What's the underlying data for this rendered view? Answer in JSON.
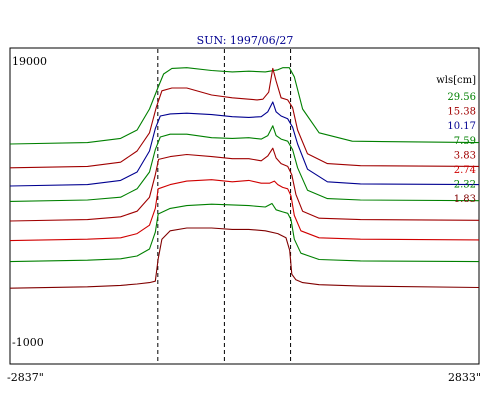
{
  "chart_data": {
    "type": "line",
    "title": "SUN: 1997/06/27",
    "xlabel": "",
    "ylabel": "",
    "x_tick_labels": {
      "left": "-2837\"",
      "right": "2833\""
    },
    "y_tick_labels": {
      "top": "19000",
      "bottom": "-1000"
    },
    "xlim": [
      -2837,
      2833
    ],
    "ylim": [
      -1000,
      19000
    ],
    "grid": false,
    "legend_title": "wls[cm]",
    "legend_position": "right",
    "vlines_x": [
      -1050,
      -245,
      555
    ],
    "series": [
      {
        "name": "29.56",
        "color": "#008000",
        "x": [
          -2837,
          -1900,
          -1500,
          -1300,
          -1150,
          -1050,
          -980,
          -880,
          -700,
          -400,
          -150,
          50,
          250,
          400,
          460,
          540,
          600,
          700,
          900,
          1300,
          2833
        ],
        "y": [
          13000,
          13100,
          13400,
          14000,
          15500,
          17000,
          18000,
          18400,
          18450,
          18250,
          18150,
          18200,
          18150,
          18300,
          18450,
          18450,
          17800,
          15500,
          13800,
          13200,
          13100
        ]
      },
      {
        "name": "15.38",
        "color": "#a00000",
        "x": [
          -2837,
          -1900,
          -1500,
          -1300,
          -1150,
          -1070,
          -1000,
          -880,
          -700,
          -400,
          -150,
          50,
          150,
          220,
          290,
          340,
          380,
          440,
          520,
          580,
          640,
          760,
          1000,
          1400,
          2833
        ],
        "y": [
          11300,
          11400,
          11700,
          12500,
          13800,
          15600,
          16800,
          17000,
          17000,
          16500,
          16300,
          16200,
          16150,
          16200,
          16700,
          18400,
          17500,
          16300,
          16150,
          15600,
          14000,
          12300,
          11600,
          11450,
          11400
        ]
      },
      {
        "name": "10.17",
        "color": "#000090",
        "x": [
          -2837,
          -1900,
          -1500,
          -1300,
          -1150,
          -1080,
          -1020,
          -900,
          -700,
          -400,
          -150,
          50,
          200,
          280,
          340,
          380,
          440,
          520,
          580,
          640,
          760,
          1000,
          1400,
          2833
        ],
        "y": [
          10000,
          10100,
          10400,
          11000,
          12500,
          14100,
          15000,
          15150,
          15200,
          15100,
          14950,
          14900,
          14950,
          15300,
          16000,
          15300,
          15000,
          14800,
          14200,
          13000,
          11200,
          10300,
          10150,
          10100
        ]
      },
      {
        "name": "7.59",
        "color": "#008000",
        "x": [
          -2837,
          -1900,
          -1500,
          -1300,
          -1150,
          -1080,
          -1020,
          -900,
          -700,
          -400,
          -150,
          50,
          200,
          280,
          340,
          380,
          440,
          520,
          580,
          640,
          760,
          1000,
          1400,
          2833
        ],
        "y": [
          8900,
          9000,
          9200,
          9800,
          11000,
          12600,
          13500,
          13700,
          13700,
          13450,
          13400,
          13450,
          13350,
          13600,
          14300,
          13600,
          13350,
          13200,
          12600,
          11300,
          9700,
          9100,
          9000,
          8950
        ]
      },
      {
        "name": "3.83",
        "color": "#a00000",
        "x": [
          -2837,
          -1900,
          -1500,
          -1300,
          -1150,
          -1080,
          -1040,
          -900,
          -700,
          -400,
          -150,
          50,
          200,
          280,
          340,
          380,
          440,
          520,
          570,
          620,
          700,
          900,
          1400,
          2833
        ],
        "y": [
          7500,
          7600,
          7800,
          8200,
          9200,
          10800,
          11900,
          12100,
          12250,
          12100,
          11950,
          11950,
          11800,
          12150,
          12700,
          12000,
          11600,
          11400,
          10800,
          9400,
          8200,
          7700,
          7600,
          7550
        ]
      },
      {
        "name": "2.74",
        "color": "#d00000",
        "x": [
          -2837,
          -1900,
          -1500,
          -1300,
          -1150,
          -1080,
          -1045,
          -900,
          -700,
          -400,
          -150,
          50,
          200,
          300,
          360,
          400,
          460,
          520,
          560,
          600,
          680,
          900,
          1400,
          2833
        ],
        "y": [
          6100,
          6200,
          6300,
          6600,
          7200,
          8400,
          9800,
          10100,
          10350,
          10450,
          10300,
          10400,
          10200,
          10200,
          10350,
          10100,
          9900,
          9800,
          9300,
          7900,
          6800,
          6300,
          6200,
          6150
        ]
      },
      {
        "name": "2.32",
        "color": "#008000",
        "x": [
          -2837,
          -1900,
          -1500,
          -1300,
          -1150,
          -1080,
          -1045,
          -900,
          -700,
          -400,
          -150,
          50,
          250,
          330,
          380,
          460,
          520,
          560,
          600,
          680,
          900,
          1400,
          2833
        ],
        "y": [
          4600,
          4700,
          4800,
          5000,
          5500,
          6700,
          8000,
          8400,
          8600,
          8700,
          8650,
          8600,
          8500,
          8750,
          8300,
          8150,
          8050,
          7600,
          6200,
          5200,
          4750,
          4650,
          4600
        ]
      },
      {
        "name": "1.83",
        "color": "#800000",
        "x": [
          -2837,
          -1900,
          -1500,
          -1300,
          -1150,
          -1080,
          -1045,
          -1000,
          -900,
          -700,
          -400,
          -150,
          50,
          250,
          400,
          500,
          545,
          570,
          620,
          700,
          900,
          1400,
          2833
        ],
        "y": [
          2700,
          2800,
          2900,
          3000,
          3100,
          3200,
          4800,
          6200,
          6800,
          7000,
          7000,
          6900,
          6900,
          6800,
          6600,
          6300,
          5400,
          3700,
          3300,
          3100,
          2950,
          2850,
          2750
        ]
      }
    ]
  }
}
